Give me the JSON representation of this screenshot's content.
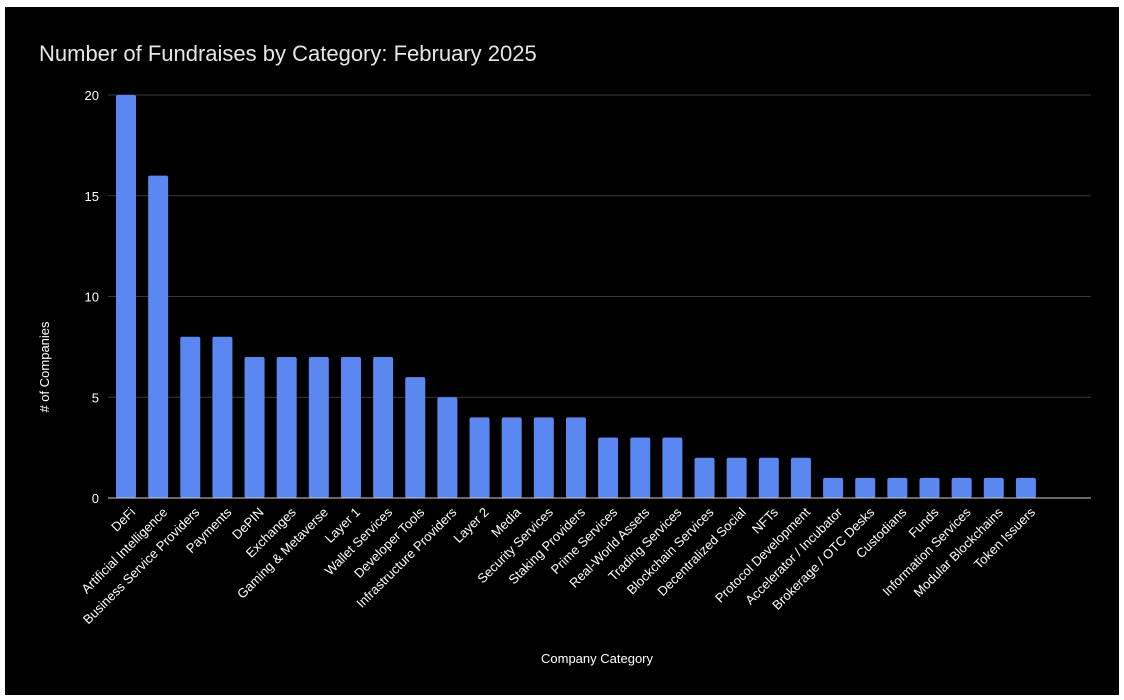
{
  "chart_data": {
    "type": "bar",
    "title": "Number of Fundraises by Category: February 2025",
    "xlabel": "Company Category",
    "ylabel": "# of Companies",
    "ylim": [
      0,
      20
    ],
    "yticks": [
      "0",
      "5",
      "10",
      "15",
      "20"
    ],
    "grid": true,
    "bar_color": "#5b87f0",
    "categories": [
      "DeFi",
      "Artificial Intelligence",
      "Business Service Providers",
      "Payments",
      "DePIN",
      "Exchanges",
      "Gaming & Metaverse",
      "Layer 1",
      "Wallet Services",
      "Developer Tools",
      "Infrastructure Providers",
      "Layer 2",
      "Media",
      "Security Services",
      "Staking Providers",
      "Prime Services",
      "Real-World Assets",
      "Trading Services",
      "Blockchain Services",
      "Decentralized Social",
      "NFTs",
      "Protocol Development",
      "Accelerator / Incubator",
      "Brokerage / OTC Desks",
      "Custodians",
      "Funds",
      "Information Services",
      "Modular Blockchains",
      "Token Issuers"
    ],
    "values": [
      20,
      16,
      8,
      8,
      7,
      7,
      7,
      7,
      7,
      6,
      5,
      4,
      4,
      4,
      4,
      3,
      3,
      3,
      2,
      2,
      2,
      2,
      1,
      1,
      1,
      1,
      1,
      1,
      1
    ]
  }
}
